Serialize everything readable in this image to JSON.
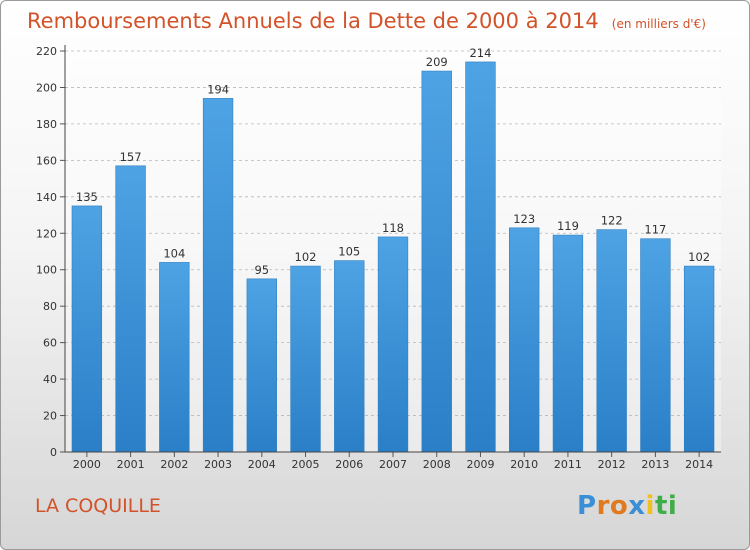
{
  "chart_data": {
    "type": "bar",
    "title": "Remboursements Annuels de la Dette de 2000 à 2014",
    "subtitle": "(en milliers d'€)",
    "xlabel": "",
    "ylabel": "",
    "categories": [
      "2000",
      "2001",
      "2002",
      "2003",
      "2004",
      "2005",
      "2006",
      "2007",
      "2008",
      "2009",
      "2010",
      "2011",
      "2012",
      "2013",
      "2014"
    ],
    "values": [
      135,
      157,
      104,
      194,
      95,
      102,
      105,
      118,
      209,
      214,
      123,
      119,
      122,
      117,
      102
    ],
    "ylim": [
      0,
      220
    ],
    "yticks": [
      0,
      20,
      40,
      60,
      80,
      100,
      120,
      140,
      160,
      180,
      200,
      220
    ],
    "grid": true,
    "legend": "none",
    "bar_color": "#4ea3e4",
    "bar_color_dark": "#2a7fc7"
  },
  "footer": {
    "location": "LA COQUILLE",
    "logo_letters": [
      "P",
      "r",
      "o",
      "x",
      "i",
      "t",
      "i"
    ],
    "logo_colors": [
      "#3a8fd6",
      "#e07a1e",
      "#e07a1e",
      "#3a8fd6",
      "#f0c020",
      "#3fae49",
      "#3fae49"
    ]
  }
}
